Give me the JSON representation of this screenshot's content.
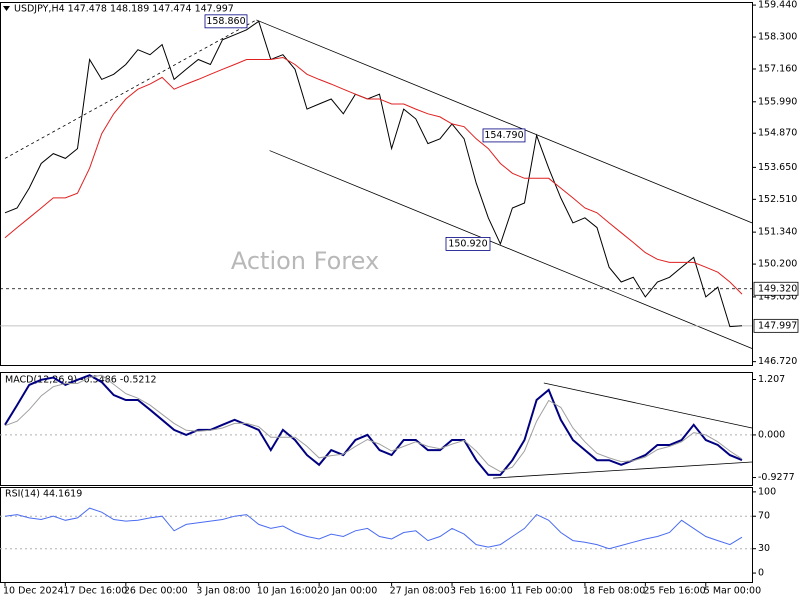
{
  "chart_data": [
    {
      "type": "line",
      "title": "USDJPY,H4  147.478 148.189 147.474 147.997",
      "watermark": "Action Forex",
      "categories": [
        "10 Dec 2024",
        null,
        null,
        null,
        null,
        "17 Dec 16:00",
        null,
        null,
        null,
        null,
        "26 Dec 00:00",
        null,
        null,
        null,
        null,
        null,
        "3 Jan 08:00",
        null,
        null,
        null,
        null,
        "10 Jan 16:00",
        null,
        null,
        null,
        null,
        "20 Jan 00:00",
        null,
        null,
        null,
        null,
        null,
        "27 Jan 08:00",
        null,
        null,
        null,
        null,
        "3 Feb 16:00",
        null,
        null,
        null,
        null,
        "11 Feb 00:00",
        null,
        null,
        null,
        null,
        null,
        "18 Feb 08:00",
        null,
        null,
        null,
        null,
        "25 Feb 16:00",
        null,
        null,
        null,
        null,
        "5 Mar 00:00",
        null,
        null,
        null
      ],
      "series": [
        {
          "color": "#000000",
          "values": [
            152.03,
            152.2,
            152.91,
            153.79,
            154.14,
            153.97,
            154.32,
            157.5,
            156.79,
            156.97,
            157.32,
            157.85,
            157.67,
            158.03,
            156.79,
            157.15,
            157.5,
            157.32,
            158.2,
            158.38,
            158.56,
            158.86,
            157.5,
            157.67,
            157.15,
            155.73,
            155.91,
            156.09,
            155.56,
            156.26,
            156.09,
            156.26,
            154.32,
            155.73,
            155.38,
            154.5,
            154.67,
            155.2,
            154.67,
            153.09,
            151.85,
            150.92,
            152.2,
            152.38,
            154.79,
            153.62,
            152.56,
            151.67,
            151.85,
            151.5,
            150.09,
            149.56,
            149.73,
            149.03,
            149.56,
            149.73,
            150.09,
            150.44,
            149.03,
            149.38,
            147.97,
            147.997
          ]
        },
        {
          "color": "#e02020",
          "values": [
            151.14,
            151.5,
            151.85,
            152.2,
            152.56,
            152.56,
            152.73,
            153.62,
            154.85,
            155.56,
            156.09,
            156.44,
            156.62,
            156.86,
            156.44,
            156.62,
            156.79,
            156.97,
            157.15,
            157.32,
            157.5,
            157.5,
            157.5,
            157.57,
            157.32,
            156.97,
            156.79,
            156.62,
            156.44,
            156.26,
            156.09,
            156.09,
            155.91,
            155.91,
            155.73,
            155.56,
            155.45,
            155.2,
            155.1,
            154.67,
            154.32,
            153.79,
            153.44,
            153.26,
            153.26,
            153.26,
            152.91,
            152.56,
            152.2,
            152.03,
            151.67,
            151.32,
            150.97,
            150.61,
            150.37,
            150.26,
            150.26,
            150.26,
            150.09,
            149.91,
            149.56,
            149.13
          ]
        }
      ],
      "ylim": [
        146.6,
        159.55
      ],
      "yticks": [
        {
          "value": 159.44,
          "label": "159.440"
        },
        {
          "value": 158.3,
          "label": "158.300"
        },
        {
          "value": 157.16,
          "label": "157.160"
        },
        {
          "value": 155.99,
          "label": "155.990"
        },
        {
          "value": 154.87,
          "label": "154.870"
        },
        {
          "value": 153.65,
          "label": "153.650"
        },
        {
          "value": 152.51,
          "label": "152.510"
        },
        {
          "value": 151.34,
          "label": "151.340"
        },
        {
          "value": 150.2,
          "label": "150.200"
        },
        {
          "value": 149.03,
          "label": "149.030"
        },
        {
          "value": 146.72,
          "label": "146.720"
        }
      ],
      "hlines": [
        {
          "value": 149.32,
          "label": "149.320",
          "style": "dashed"
        },
        {
          "value": 147.997,
          "label": "147.997",
          "style": "solid"
        }
      ],
      "annotations": [
        {
          "value": 158.86,
          "label": "158.860"
        },
        {
          "value": 154.79,
          "label": "154.790"
        },
        {
          "value": 150.92,
          "label": "150.920"
        }
      ],
      "trendlines": [
        {
          "x": [
            0,
            20.8
          ],
          "y": [
            153.97,
            158.91
          ],
          "style": "dashed"
        },
        {
          "x": [
            20.8,
            62.3
          ],
          "y": [
            158.91,
            151.67
          ],
          "style": "solid"
        },
        {
          "x": [
            21.9,
            62.3
          ],
          "y": [
            154.25,
            147.19
          ],
          "style": "solid"
        }
      ]
    },
    {
      "type": "line",
      "title": "MACD(12,26,9) -0.5486 -0.5212",
      "series": [
        {
          "color": "#000080",
          "values": [
            0.22,
            0.65,
            1.09,
            1.2,
            1.25,
            1.09,
            1.2,
            1.3,
            1.15,
            0.87,
            0.76,
            0.76,
            0.55,
            0.33,
            0.11,
            0,
            0.11,
            0.11,
            0.22,
            0.33,
            0.22,
            0.11,
            -0.33,
            0.11,
            -0.11,
            -0.44,
            -0.65,
            -0.33,
            -0.44,
            -0.11,
            0,
            -0.33,
            -0.44,
            -0.11,
            -0.11,
            -0.33,
            -0.33,
            -0.11,
            -0.11,
            -0.55,
            -0.87,
            -0.87,
            -0.55,
            -0.11,
            0.76,
            0.98,
            0.33,
            -0.11,
            -0.33,
            -0.55,
            -0.55,
            -0.65,
            -0.55,
            -0.44,
            -0.22,
            -0.22,
            -0.11,
            0.22,
            -0.11,
            -0.22,
            -0.44,
            -0.5486
          ]
        },
        {
          "color": "#a0a0a0",
          "values": [
            0.2,
            0.3,
            0.55,
            0.85,
            1.05,
            1.12,
            1.12,
            1.25,
            1.3,
            1.1,
            0.9,
            0.8,
            0.65,
            0.45,
            0.25,
            0.1,
            0.08,
            0.1,
            0.15,
            0.25,
            0.25,
            0.18,
            -0.05,
            -0.05,
            -0.05,
            -0.25,
            -0.5,
            -0.45,
            -0.42,
            -0.25,
            -0.1,
            -0.2,
            -0.35,
            -0.25,
            -0.15,
            -0.25,
            -0.3,
            -0.2,
            -0.12,
            -0.35,
            -0.65,
            -0.8,
            -0.7,
            -0.35,
            0.3,
            0.75,
            0.6,
            0.15,
            -0.15,
            -0.4,
            -0.5,
            -0.58,
            -0.56,
            -0.48,
            -0.32,
            -0.25,
            -0.15,
            0.05,
            0.0,
            -0.15,
            -0.35,
            -0.5212
          ]
        }
      ],
      "ylim": [
        -1.09,
        1.37
      ],
      "yticks": [
        1.207,
        {
          "value": 0,
          "label": "0.000"
        },
        -0.9277
      ],
      "levels": [
        0
      ],
      "trendlines": [
        {
          "x": [
            44.6,
            61.9
          ],
          "y": [
            1.13,
            0.15
          ],
          "style": "solid"
        },
        {
          "x": [
            40.4,
            61.9
          ],
          "y": [
            -0.94,
            -0.59
          ],
          "style": "solid"
        }
      ]
    },
    {
      "type": "line",
      "title": "RSI(14) 44.1619",
      "series": [
        {
          "color": "#4a6cf0",
          "values": [
            70,
            72,
            68,
            66,
            70,
            65,
            68,
            80,
            75,
            66,
            64,
            65,
            68,
            70,
            52,
            60,
            62,
            64,
            66,
            70,
            72,
            60,
            55,
            58,
            50,
            45,
            42,
            48,
            45,
            52,
            55,
            45,
            42,
            50,
            52,
            40,
            45,
            55,
            48,
            35,
            32,
            35,
            45,
            55,
            72,
            65,
            50,
            40,
            38,
            35,
            30,
            34,
            38,
            42,
            45,
            50,
            65,
            55,
            45,
            40,
            35,
            44.1619
          ]
        }
      ],
      "ylim": [
        -11,
        106
      ],
      "yticks": [
        100,
        70,
        30,
        0
      ],
      "levels": [
        70,
        30
      ]
    }
  ]
}
